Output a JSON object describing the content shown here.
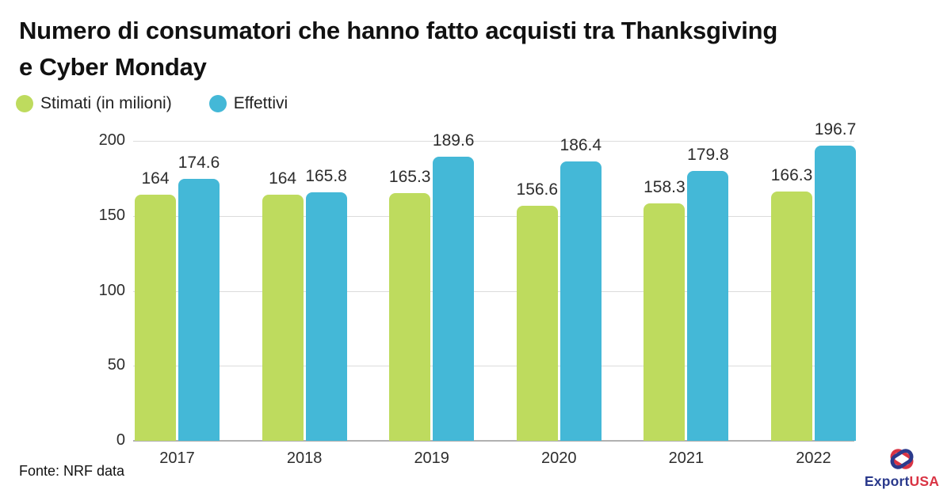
{
  "header": {
    "title_line1": "Numero di consumatori che hanno fatto acquisti tra Thanksgiving",
    "title_line2": "e Cyber Monday"
  },
  "legend": {
    "items": [
      {
        "label": "Stimati (in milioni)",
        "color": "#bedb5e"
      },
      {
        "label": "Effettivi",
        "color": "#44b8d7"
      }
    ]
  },
  "chart_data": {
    "type": "bar",
    "title": "Numero di consumatori che hanno fatto acquisti tra Thanksgiving e Cyber Monday",
    "categories": [
      "2017",
      "2018",
      "2019",
      "2020",
      "2021",
      "2022"
    ],
    "series": [
      {
        "name": "Stimati (in milioni)",
        "color": "#bedb5e",
        "values": [
          164,
          164,
          165.3,
          156.6,
          158.3,
          166.3
        ]
      },
      {
        "name": "Effettivi",
        "color": "#44b8d7",
        "values": [
          174.6,
          165.8,
          189.6,
          186.4,
          179.8,
          196.7
        ]
      }
    ],
    "xlabel": "",
    "ylabel": "",
    "ylim": [
      0,
      200
    ],
    "yticks": [
      0,
      50,
      100,
      150,
      200
    ],
    "grid": true,
    "legend_position": "top-left",
    "value_labels": true
  },
  "footer": {
    "source": "Fonte: NRF data"
  },
  "logo": {
    "text_primary": "Export",
    "text_secondary": "USA",
    "color_primary": "#2b3a8c",
    "color_secondary": "#d93444"
  }
}
